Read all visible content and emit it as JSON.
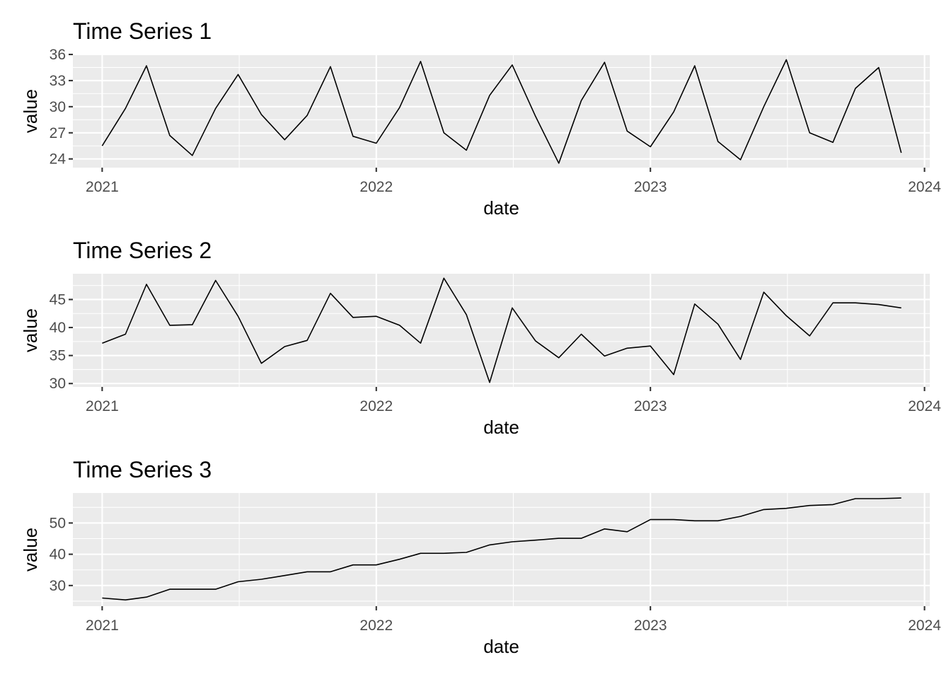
{
  "chart_data": [
    {
      "type": "line",
      "title": "Time Series 1",
      "xlabel": "date",
      "ylabel": "value",
      "x_ticks": [
        "2021",
        "2022",
        "2023",
        "2024"
      ],
      "y_ticks": [
        24,
        27,
        30,
        33,
        36
      ],
      "ylim": [
        23,
        36
      ],
      "xlim": [
        "2020-11-23",
        "2024-01-08"
      ],
      "grid": true,
      "x": [
        "2021-01-01",
        "2021-02-01",
        "2021-03-01",
        "2021-04-01",
        "2021-05-01",
        "2021-06-01",
        "2021-07-01",
        "2021-08-01",
        "2021-09-01",
        "2021-10-01",
        "2021-11-01",
        "2021-12-01",
        "2022-01-01",
        "2022-02-01",
        "2022-03-01",
        "2022-04-01",
        "2022-05-01",
        "2022-06-01",
        "2022-07-01",
        "2022-08-01",
        "2022-09-01",
        "2022-10-01",
        "2022-11-01",
        "2022-12-01",
        "2023-01-01",
        "2023-02-01",
        "2023-03-01",
        "2023-04-01",
        "2023-05-01",
        "2023-06-01",
        "2023-07-01",
        "2023-08-01",
        "2023-09-01",
        "2023-10-01",
        "2023-11-01",
        "2023-12-01"
      ],
      "values": [
        25.5,
        29.8,
        34.7,
        26.7,
        24.4,
        29.8,
        33.7,
        29.1,
        26.2,
        29.0,
        34.6,
        26.6,
        25.8,
        29.9,
        35.2,
        27.0,
        25.0,
        31.3,
        34.8,
        28.9,
        23.5,
        30.7,
        35.1,
        27.2,
        25.4,
        29.4,
        34.7,
        26.0,
        23.9,
        30.0,
        35.4,
        27.0,
        25.9,
        32.1,
        34.5,
        24.7
      ]
    },
    {
      "type": "line",
      "title": "Time Series 2",
      "xlabel": "date",
      "ylabel": "value",
      "x_ticks": [
        "2021",
        "2022",
        "2023",
        "2024"
      ],
      "y_ticks": [
        30,
        35,
        40,
        45
      ],
      "ylim": [
        29.4,
        49.6
      ],
      "xlim": [
        "2020-11-23",
        "2024-01-08"
      ],
      "grid": true,
      "x": [
        "2021-01-01",
        "2021-02-01",
        "2021-03-01",
        "2021-04-01",
        "2021-05-01",
        "2021-06-01",
        "2021-07-01",
        "2021-08-01",
        "2021-09-01",
        "2021-10-01",
        "2021-11-01",
        "2021-12-01",
        "2022-01-01",
        "2022-02-01",
        "2022-03-01",
        "2022-04-01",
        "2022-05-01",
        "2022-06-01",
        "2022-07-01",
        "2022-08-01",
        "2022-09-01",
        "2022-10-01",
        "2022-11-01",
        "2022-12-01",
        "2023-01-01",
        "2023-02-01",
        "2023-03-01",
        "2023-04-01",
        "2023-05-01",
        "2023-06-01",
        "2023-07-01",
        "2023-08-01",
        "2023-09-01",
        "2023-10-01",
        "2023-11-01",
        "2023-12-01"
      ],
      "values": [
        37.2,
        38.8,
        47.7,
        40.4,
        40.5,
        48.4,
        42.0,
        33.6,
        36.6,
        37.7,
        46.1,
        41.8,
        42.0,
        40.4,
        37.2,
        48.8,
        42.3,
        30.2,
        43.5,
        37.6,
        34.6,
        38.8,
        34.9,
        36.3,
        36.7,
        31.6,
        44.2,
        40.6,
        34.3,
        46.3,
        42.1,
        38.5,
        44.4,
        44.4,
        44.1,
        43.5
      ]
    },
    {
      "type": "line",
      "title": "Time Series 3",
      "xlabel": "date",
      "ylabel": "value",
      "x_ticks": [
        "2021",
        "2022",
        "2023",
        "2024"
      ],
      "y_ticks": [
        30,
        40,
        50
      ],
      "ylim": [
        23.4,
        59.6
      ],
      "xlim": [
        "2020-11-23",
        "2024-01-08"
      ],
      "grid": true,
      "x": [
        "2021-01-01",
        "2021-02-01",
        "2021-03-01",
        "2021-04-01",
        "2021-05-01",
        "2021-06-01",
        "2021-07-01",
        "2021-08-01",
        "2021-09-01",
        "2021-10-01",
        "2021-11-01",
        "2021-12-01",
        "2022-01-01",
        "2022-02-01",
        "2022-03-01",
        "2022-04-01",
        "2022-05-01",
        "2022-06-01",
        "2022-07-01",
        "2022-08-01",
        "2022-09-01",
        "2022-10-01",
        "2022-11-01",
        "2022-12-01",
        "2023-01-01",
        "2023-02-01",
        "2023-03-01",
        "2023-04-01",
        "2023-05-01",
        "2023-06-01",
        "2023-07-01",
        "2023-08-01",
        "2023-09-01",
        "2023-10-01",
        "2023-11-01",
        "2023-12-01"
      ],
      "values": [
        26.0,
        25.4,
        26.3,
        28.8,
        28.8,
        28.8,
        31.2,
        32.0,
        33.2,
        34.4,
        34.4,
        36.6,
        36.6,
        38.4,
        40.3,
        40.3,
        40.6,
        43.0,
        44.0,
        44.5,
        45.1,
        45.1,
        48.1,
        47.2,
        51.1,
        51.1,
        50.7,
        50.7,
        52.1,
        54.3,
        54.7,
        55.6,
        55.9,
        57.8,
        57.8,
        58.0
      ]
    }
  ]
}
